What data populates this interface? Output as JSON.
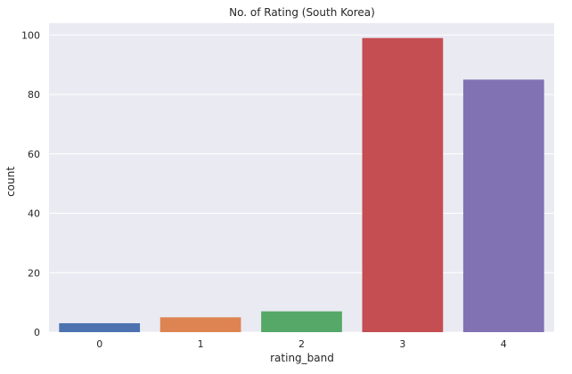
{
  "chart_data": {
    "type": "bar",
    "title": "No. of Rating (South Korea)",
    "xlabel": "rating_band",
    "ylabel": "count",
    "categories": [
      "0",
      "1",
      "2",
      "3",
      "4"
    ],
    "values": [
      3,
      5,
      7,
      99,
      85
    ],
    "ylim": [
      0,
      104
    ],
    "yticks": [
      0,
      20,
      40,
      60,
      80,
      100
    ],
    "grid": true,
    "colors": [
      "#4c72b0",
      "#dd8452",
      "#55a868",
      "#c44e52",
      "#8172b3"
    ],
    "background": "#eaeaf2"
  }
}
